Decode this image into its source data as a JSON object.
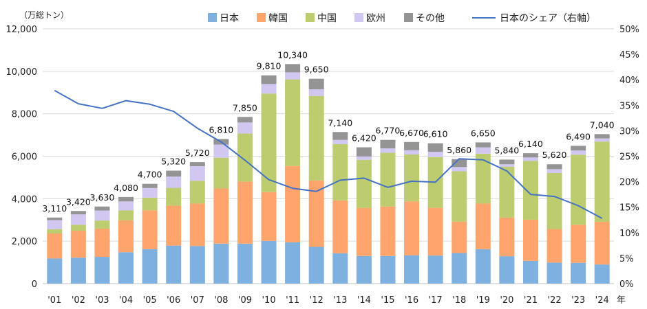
{
  "chart_data": {
    "type": "bar",
    "stacked": true,
    "units_label": "（万総トン）",
    "x_unit_label": "年",
    "categories": [
      "'01",
      "'02",
      "'03",
      "'04",
      "'05",
      "'06",
      "'07",
      "'08",
      "'09",
      "'10",
      "'11",
      "'12",
      "'13",
      "'14",
      "'15",
      "'16",
      "'17",
      "'18",
      "'19",
      "'20",
      "'21",
      "'22",
      "'23",
      "'24"
    ],
    "totals": [
      3110,
      3420,
      3630,
      4080,
      4700,
      5320,
      5720,
      6810,
      7850,
      9810,
      10340,
      9650,
      7140,
      6420,
      6770,
      6670,
      6610,
      5860,
      6650,
      5840,
      6140,
      5620,
      6490,
      7040
    ],
    "total_labels": [
      "3,110",
      "3,420",
      "3,630",
      "4,080",
      "4,700",
      "5,320",
      "5,720",
      "6,810",
      "7,850",
      "9,810",
      "10,340",
      "9,650",
      "7,140",
      "6,420",
      "6,770",
      "6,670",
      "6,610",
      "5,860",
      "6,650",
      "5,840",
      "6,140",
      "5,620",
      "6,490",
      "7,040"
    ],
    "series": [
      {
        "name": "日本",
        "color": "#7fb1e0",
        "values": [
          1180,
          1220,
          1260,
          1480,
          1620,
          1790,
          1770,
          1880,
          1880,
          2010,
          1940,
          1730,
          1430,
          1300,
          1300,
          1330,
          1320,
          1440,
          1620,
          1290,
          1070,
          990,
          980,
          900
        ]
      },
      {
        "name": "韓国",
        "color": "#fda56d",
        "values": [
          1180,
          1270,
          1330,
          1500,
          1830,
          1880,
          2000,
          2600,
          2920,
          2300,
          3600,
          3130,
          2490,
          2260,
          2330,
          2540,
          2250,
          1480,
          2150,
          1820,
          1940,
          1580,
          1790,
          2010
        ]
      },
      {
        "name": "中国",
        "color": "#bccc6e",
        "values": [
          200,
          280,
          380,
          470,
          600,
          840,
          1070,
          1450,
          2270,
          4640,
          4080,
          3980,
          2650,
          2270,
          2530,
          2210,
          2390,
          2370,
          2350,
          2390,
          2770,
          2640,
          3300,
          3780
        ]
      },
      {
        "name": "欧州",
        "color": "#d1c7f1",
        "values": [
          430,
          490,
          470,
          420,
          450,
          530,
          690,
          620,
          520,
          450,
          330,
          310,
          200,
          160,
          210,
          200,
          250,
          200,
          300,
          120,
          160,
          180,
          200,
          150
        ]
      },
      {
        "name": "その他",
        "color": "#949494",
        "values": [
          120,
          160,
          190,
          210,
          200,
          280,
          190,
          260,
          260,
          410,
          390,
          500,
          370,
          430,
          400,
          390,
          400,
          370,
          230,
          220,
          200,
          230,
          220,
          200
        ]
      }
    ],
    "line_series": {
      "name": "日本のシェア（右軸）",
      "color": "#4472c4",
      "axis": "right",
      "values": [
        37.9,
        35.3,
        34.4,
        35.9,
        35.2,
        33.8,
        30.5,
        27.8,
        24.2,
        20.4,
        18.7,
        18.1,
        20.3,
        20.7,
        18.9,
        20.1,
        19.9,
        24.5,
        24.3,
        22.1,
        17.5,
        17.1,
        15.3,
        12.8
      ]
    },
    "y_left": {
      "min": 0,
      "max": 12000,
      "ticks": [
        0,
        2000,
        4000,
        6000,
        8000,
        10000,
        12000
      ],
      "tick_labels": [
        "0",
        "2,000",
        "4,000",
        "6,000",
        "8,000",
        "10,000",
        "12,000"
      ]
    },
    "y_right": {
      "min": 0,
      "max": 50,
      "ticks": [
        0,
        5,
        10,
        15,
        20,
        25,
        30,
        35,
        40,
        45,
        50
      ],
      "tick_labels": [
        "0%",
        "5%",
        "10%",
        "15%",
        "20%",
        "25%",
        "30%",
        "35%",
        "40%",
        "45%",
        "50%"
      ]
    },
    "grid": "horizontal",
    "legend": {
      "placement": "top"
    }
  }
}
